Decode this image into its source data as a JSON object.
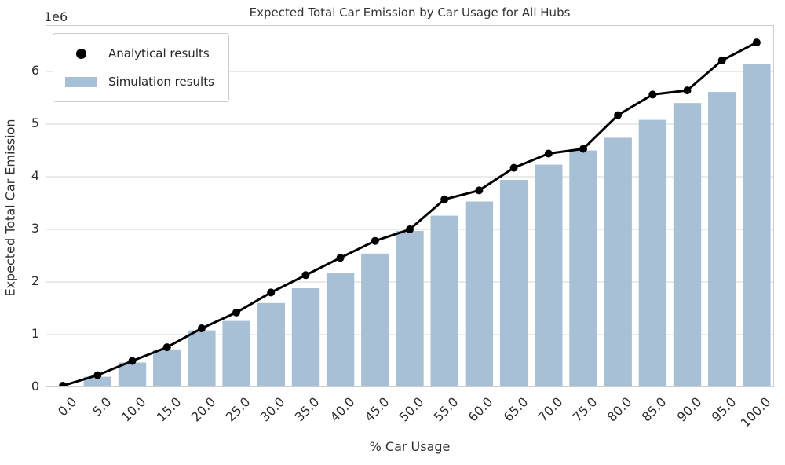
{
  "chart_data": {
    "type": "bar",
    "title": "Expected Total Car Emission by Car Usage for All Hubs",
    "xlabel": "% Car Usage",
    "ylabel": "Expected Total Car Emission",
    "y_offset_text": "1e6",
    "grid": true,
    "legend_position": "upper left",
    "categories": [
      "0.0",
      "5.0",
      "10.0",
      "15.0",
      "20.0",
      "25.0",
      "30.0",
      "35.0",
      "40.0",
      "45.0",
      "50.0",
      "55.0",
      "60.0",
      "65.0",
      "70.0",
      "75.0",
      "80.0",
      "85.0",
      "90.0",
      "95.0",
      "100.0"
    ],
    "ylim": [
      0,
      6880000
    ],
    "ytick_values": [
      0,
      1000000,
      2000000,
      3000000,
      4000000,
      5000000,
      6000000
    ],
    "ytick_labels": [
      "0",
      "1",
      "2",
      "3",
      "4",
      "5",
      "6"
    ],
    "series": [
      {
        "name": "Analytical results",
        "kind": "line",
        "marker": "filled-circle",
        "color": "#000000",
        "values": [
          30000,
          230000,
          500000,
          760000,
          1120000,
          1420000,
          1800000,
          2130000,
          2460000,
          2780000,
          3000000,
          3570000,
          3740000,
          4170000,
          4440000,
          4530000,
          5170000,
          5560000,
          5640000,
          6210000,
          6550000
        ]
      },
      {
        "name": "Simulation results",
        "kind": "bar",
        "marker": "filled-patch",
        "color": "#a8c0d6",
        "values": [
          20000,
          200000,
          470000,
          720000,
          1080000,
          1260000,
          1600000,
          1880000,
          2170000,
          2540000,
          2970000,
          3260000,
          3530000,
          3940000,
          4230000,
          4500000,
          4740000,
          5080000,
          5400000,
          5610000,
          6140000
        ]
      }
    ],
    "colors": {
      "grid": "#d6d6d6",
      "spine": "#cccccc",
      "text": "#2e2e2e",
      "background": "#ffffff"
    }
  }
}
